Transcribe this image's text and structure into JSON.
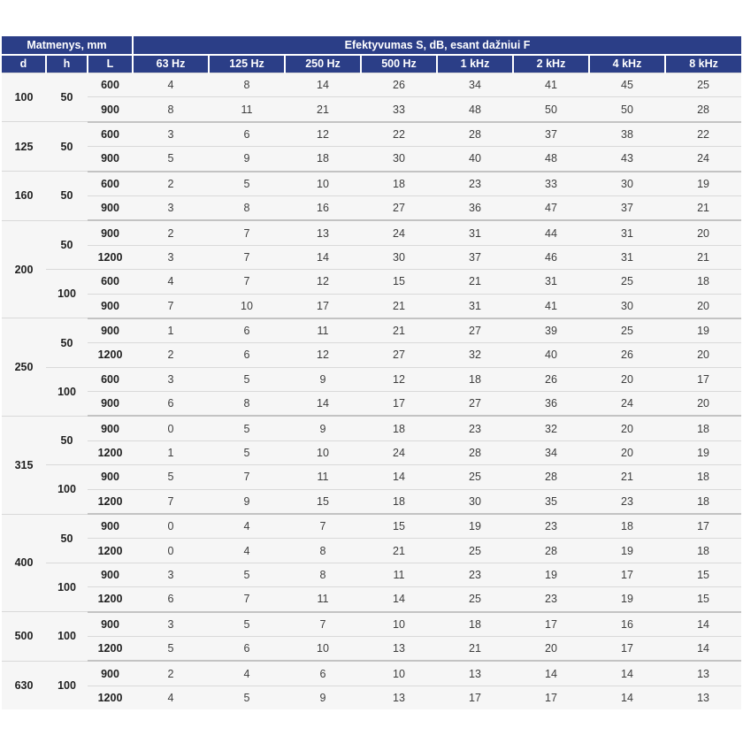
{
  "colors": {
    "header_bg": "#2b3e87",
    "header_text": "#ffffff",
    "row_bg": "#f6f6f6",
    "row_line": "#d9d9d9",
    "group_line": "#c3c3c3",
    "dim_text": "#1f1f1f",
    "value_text": "#3d3d3d"
  },
  "table": {
    "header": {
      "dimensions_label": "Matmenys, mm",
      "effectiveness_label": "Efektyvumas S, dB, esant dažniui F",
      "dim_cols": [
        "d",
        "h",
        "L"
      ],
      "freq_cols": [
        "63 Hz",
        "125 Hz",
        "250 Hz",
        "500 Hz",
        "1 kHz",
        "2 kHz",
        "4 kHz",
        "8 kHz"
      ]
    },
    "groups": [
      {
        "d": "100",
        "subs": [
          {
            "h": "50",
            "rows": [
              {
                "L": "600",
                "v": [
                  4,
                  8,
                  14,
                  26,
                  34,
                  41,
                  45,
                  25
                ]
              },
              {
                "L": "900",
                "v": [
                  8,
                  11,
                  21,
                  33,
                  48,
                  50,
                  50,
                  28
                ]
              }
            ]
          }
        ]
      },
      {
        "d": "125",
        "subs": [
          {
            "h": "50",
            "rows": [
              {
                "L": "600",
                "v": [
                  3,
                  6,
                  12,
                  22,
                  28,
                  37,
                  38,
                  22
                ]
              },
              {
                "L": "900",
                "v": [
                  5,
                  9,
                  18,
                  30,
                  40,
                  48,
                  43,
                  24
                ]
              }
            ]
          }
        ]
      },
      {
        "d": "160",
        "subs": [
          {
            "h": "50",
            "rows": [
              {
                "L": "600",
                "v": [
                  2,
                  5,
                  10,
                  18,
                  23,
                  33,
                  30,
                  19
                ]
              },
              {
                "L": "900",
                "v": [
                  3,
                  8,
                  16,
                  27,
                  36,
                  47,
                  37,
                  21
                ]
              }
            ]
          }
        ]
      },
      {
        "d": "200",
        "subs": [
          {
            "h": "50",
            "rows": [
              {
                "L": "900",
                "v": [
                  2,
                  7,
                  13,
                  24,
                  31,
                  44,
                  31,
                  20
                ]
              },
              {
                "L": "1200",
                "v": [
                  3,
                  7,
                  14,
                  30,
                  37,
                  46,
                  31,
                  21
                ]
              }
            ]
          },
          {
            "h": "100",
            "rows": [
              {
                "L": "600",
                "v": [
                  4,
                  7,
                  12,
                  15,
                  21,
                  31,
                  25,
                  18
                ]
              },
              {
                "L": "900",
                "v": [
                  7,
                  10,
                  17,
                  21,
                  31,
                  41,
                  30,
                  20
                ]
              }
            ]
          }
        ]
      },
      {
        "d": "250",
        "subs": [
          {
            "h": "50",
            "rows": [
              {
                "L": "900",
                "v": [
                  1,
                  6,
                  11,
                  21,
                  27,
                  39,
                  25,
                  19
                ]
              },
              {
                "L": "1200",
                "v": [
                  2,
                  6,
                  12,
                  27,
                  32,
                  40,
                  26,
                  20
                ]
              }
            ]
          },
          {
            "h": "100",
            "rows": [
              {
                "L": "600",
                "v": [
                  3,
                  5,
                  9,
                  12,
                  18,
                  26,
                  20,
                  17
                ]
              },
              {
                "L": "900",
                "v": [
                  6,
                  8,
                  14,
                  17,
                  27,
                  36,
                  24,
                  20
                ]
              }
            ]
          }
        ]
      },
      {
        "d": "315",
        "subs": [
          {
            "h": "50",
            "rows": [
              {
                "L": "900",
                "v": [
                  0,
                  5,
                  9,
                  18,
                  23,
                  32,
                  20,
                  18
                ]
              },
              {
                "L": "1200",
                "v": [
                  1,
                  5,
                  10,
                  24,
                  28,
                  34,
                  20,
                  19
                ]
              }
            ]
          },
          {
            "h": "100",
            "rows": [
              {
                "L": "900",
                "v": [
                  5,
                  7,
                  11,
                  14,
                  25,
                  28,
                  21,
                  18
                ]
              },
              {
                "L": "1200",
                "v": [
                  7,
                  9,
                  15,
                  18,
                  30,
                  35,
                  23,
                  18
                ]
              }
            ]
          }
        ]
      },
      {
        "d": "400",
        "subs": [
          {
            "h": "50",
            "rows": [
              {
                "L": "900",
                "v": [
                  0,
                  4,
                  7,
                  15,
                  19,
                  23,
                  18,
                  17
                ]
              },
              {
                "L": "1200",
                "v": [
                  0,
                  4,
                  8,
                  21,
                  25,
                  28,
                  19,
                  18
                ]
              }
            ]
          },
          {
            "h": "100",
            "rows": [
              {
                "L": "900",
                "v": [
                  3,
                  5,
                  8,
                  11,
                  23,
                  19,
                  17,
                  15
                ]
              },
              {
                "L": "1200",
                "v": [
                  6,
                  7,
                  11,
                  14,
                  25,
                  23,
                  19,
                  15
                ]
              }
            ]
          }
        ]
      },
      {
        "d": "500",
        "subs": [
          {
            "h": "100",
            "rows": [
              {
                "L": "900",
                "v": [
                  3,
                  5,
                  7,
                  10,
                  18,
                  17,
                  16,
                  14
                ]
              },
              {
                "L": "1200",
                "v": [
                  5,
                  6,
                  10,
                  13,
                  21,
                  20,
                  17,
                  14
                ]
              }
            ]
          }
        ]
      },
      {
        "d": "630",
        "subs": [
          {
            "h": "100",
            "rows": [
              {
                "L": "900",
                "v": [
                  2,
                  4,
                  6,
                  10,
                  13,
                  14,
                  14,
                  13
                ]
              },
              {
                "L": "1200",
                "v": [
                  4,
                  5,
                  9,
                  13,
                  17,
                  17,
                  14,
                  13
                ]
              }
            ]
          }
        ]
      }
    ]
  }
}
